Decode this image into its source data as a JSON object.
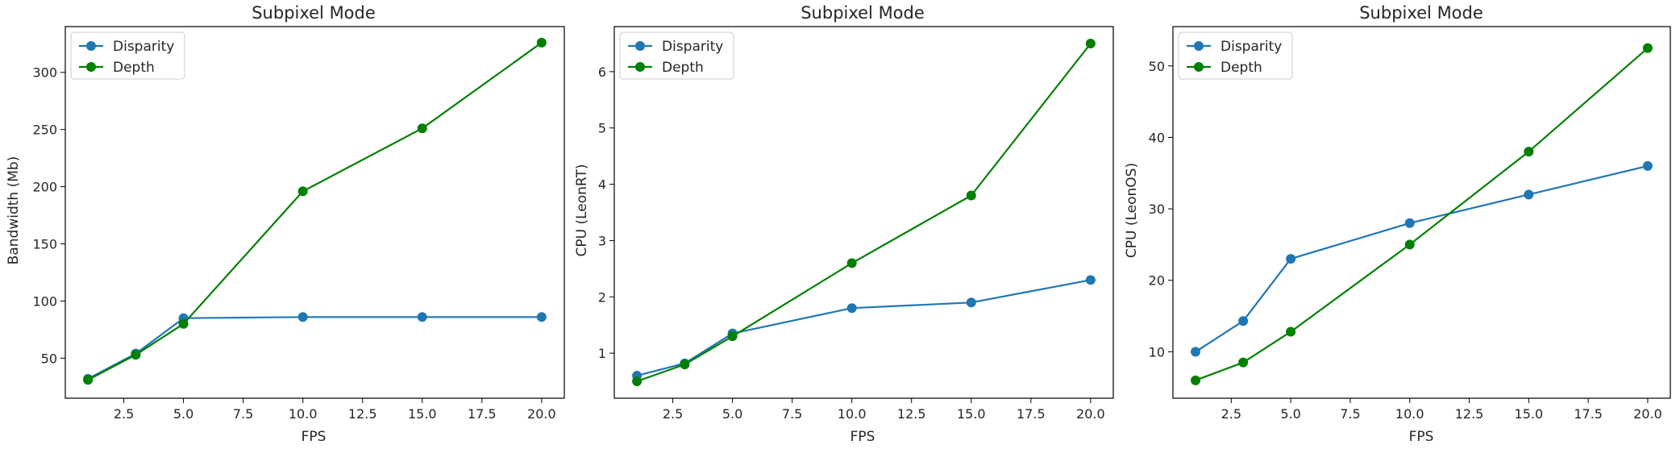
{
  "chart_data": [
    {
      "type": "line",
      "title": "Subpixel Mode",
      "xlabel": "FPS",
      "ylabel": "Bandwidth (Mb)",
      "xlim": [
        0.05,
        20.95
      ],
      "ylim": [
        15,
        340
      ],
      "xticks": [
        2.5,
        5.0,
        7.5,
        10.0,
        12.5,
        15.0,
        17.5,
        20.0
      ],
      "xtick_labels": [
        "2.5",
        "5.0",
        "7.5",
        "10.0",
        "12.5",
        "15.0",
        "17.5",
        "20.0"
      ],
      "yticks": [
        50,
        100,
        150,
        200,
        250,
        300
      ],
      "ytick_labels": [
        "50",
        "100",
        "150",
        "200",
        "250",
        "300"
      ],
      "legend": "top-left",
      "grid": false,
      "series": [
        {
          "name": "Disparity",
          "color": "#1f77b4",
          "x": [
            1,
            3,
            5,
            10,
            15,
            20
          ],
          "y": [
            32,
            54,
            85,
            86,
            86,
            86
          ]
        },
        {
          "name": "Depth",
          "color": "#008000",
          "x": [
            1,
            3,
            5,
            10,
            15,
            20
          ],
          "y": [
            31,
            53,
            80,
            196,
            251,
            326
          ]
        }
      ]
    },
    {
      "type": "line",
      "title": "Subpixel Mode",
      "xlabel": "FPS",
      "ylabel": "CPU (LeonRT)",
      "xlim": [
        0.05,
        20.95
      ],
      "ylim": [
        0.2,
        6.8
      ],
      "xticks": [
        2.5,
        5.0,
        7.5,
        10.0,
        12.5,
        15.0,
        17.5,
        20.0
      ],
      "xtick_labels": [
        "2.5",
        "5.0",
        "7.5",
        "10.0",
        "12.5",
        "15.0",
        "17.5",
        "20.0"
      ],
      "yticks": [
        1,
        2,
        3,
        4,
        5,
        6
      ],
      "ytick_labels": [
        "1",
        "2",
        "3",
        "4",
        "5",
        "6"
      ],
      "legend": "top-left",
      "grid": false,
      "series": [
        {
          "name": "Disparity",
          "color": "#1f77b4",
          "x": [
            1,
            3,
            5,
            10,
            15,
            20
          ],
          "y": [
            0.6,
            0.82,
            1.35,
            1.8,
            1.9,
            2.3
          ]
        },
        {
          "name": "Depth",
          "color": "#008000",
          "x": [
            1,
            3,
            5,
            10,
            15,
            20
          ],
          "y": [
            0.5,
            0.8,
            1.3,
            2.6,
            3.8,
            6.5
          ]
        }
      ]
    },
    {
      "type": "line",
      "title": "Subpixel Mode",
      "xlabel": "FPS",
      "ylabel": "CPU (LeonOS)",
      "xlim": [
        0.05,
        20.95
      ],
      "ylim": [
        3.5,
        55.5
      ],
      "xticks": [
        2.5,
        5.0,
        7.5,
        10.0,
        12.5,
        15.0,
        17.5,
        20.0
      ],
      "xtick_labels": [
        "2.5",
        "5.0",
        "7.5",
        "10.0",
        "12.5",
        "15.0",
        "17.5",
        "20.0"
      ],
      "yticks": [
        10,
        20,
        30,
        40,
        50
      ],
      "ytick_labels": [
        "10",
        "20",
        "30",
        "40",
        "50"
      ],
      "legend": "top-left",
      "grid": false,
      "series": [
        {
          "name": "Disparity",
          "color": "#1f77b4",
          "x": [
            1,
            3,
            5,
            10,
            15,
            20
          ],
          "y": [
            10,
            14.3,
            23,
            28,
            32,
            36
          ]
        },
        {
          "name": "Depth",
          "color": "#008000",
          "x": [
            1,
            3,
            5,
            10,
            15,
            20
          ],
          "y": [
            6,
            8.5,
            12.8,
            25,
            38,
            52.5
          ]
        }
      ]
    }
  ]
}
